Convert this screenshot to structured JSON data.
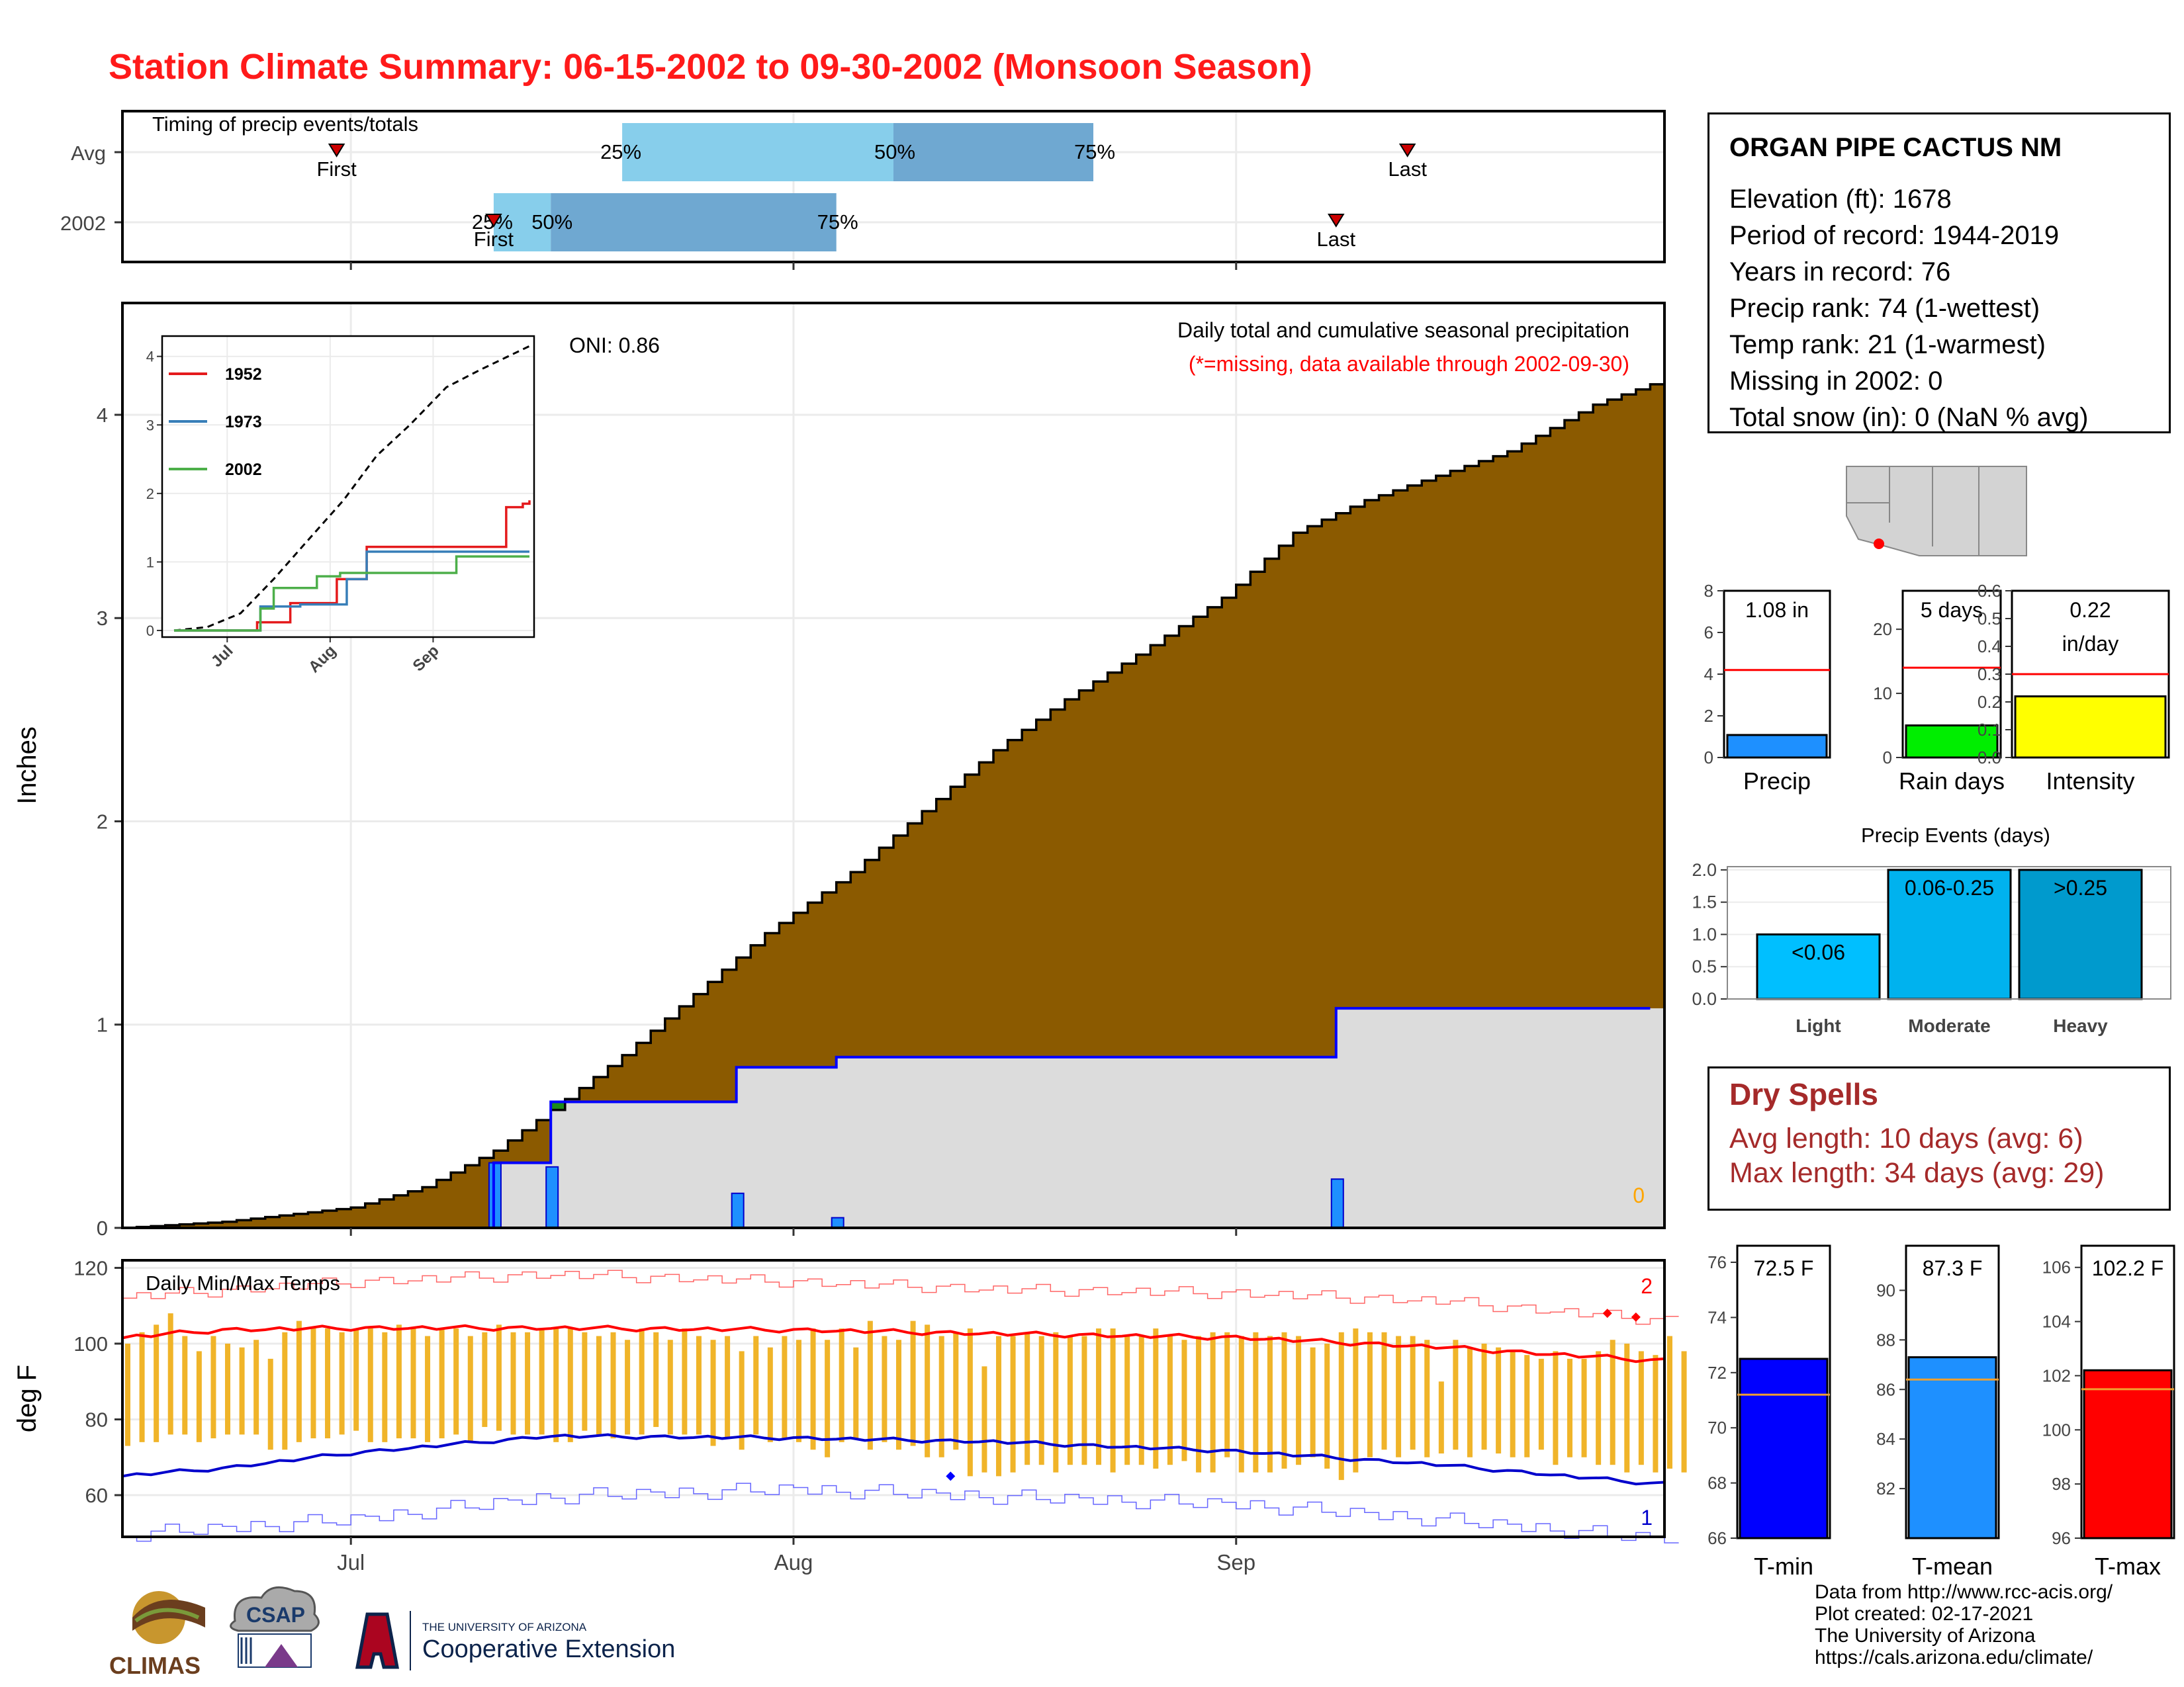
{
  "title": "Station Climate Summary: 06-15-2002 to 09-30-2002 (Monsoon Season)",
  "colors": {
    "title": "#ff1a1a",
    "precip_fill": "#8b5a00",
    "current_line": "#0000ff",
    "tmax": "#ff0000",
    "tmin": "#0000cc",
    "dry": "#a52a2a"
  },
  "timing_panel": {
    "title": "Timing of precip events/totals",
    "rows": [
      {
        "label": "Avg",
        "first": "2002-06-30",
        "p25": "2002-07-20",
        "p50": "2002-08-08",
        "p75": "2002-08-22",
        "last": "2002-09-13",
        "first_label": "First",
        "last_label": "Last",
        "p25_label": "25%",
        "p50_label": "50%",
        "p75_label": "75%"
      },
      {
        "label": "2002",
        "first": "2002-07-11",
        "p25": "2002-07-11",
        "p50": "2002-07-15",
        "p75": "2002-08-04",
        "last": "2002-09-08",
        "first_label": "First",
        "last_label": "Last",
        "p25_label": "25%",
        "p50_label": "50%",
        "p75_label": "75%"
      }
    ]
  },
  "precip_panel": {
    "ylabel": "Inches",
    "oni": "ONI: 0.86",
    "subtitle": "Daily total and cumulative seasonal precipitation",
    "note": "(*=missing, data available through 2002-09-30)",
    "missing_count": "0",
    "yticks": [
      "0",
      "1",
      "2",
      "3",
      "4"
    ]
  },
  "inset": {
    "legend": [
      "1952",
      "1973",
      "2002"
    ],
    "legend_colors": [
      "#e41a1c",
      "#377eb8",
      "#4daf4a"
    ],
    "yticks": [
      "0",
      "1",
      "2",
      "3",
      "4"
    ],
    "xticks": [
      "Jul",
      "Aug",
      "Sep"
    ]
  },
  "temp_panel": {
    "title": "Daily Min/Max Temps",
    "ylabel": "deg F",
    "yticks": [
      "60",
      "80",
      "100",
      "120"
    ],
    "count_max": "2",
    "count_min": "1",
    "xticks": [
      "Jul",
      "Aug",
      "Sep"
    ]
  },
  "station": {
    "name": "ORGAN PIPE CACTUS NM",
    "lines": [
      "Elevation (ft): 1678",
      "Period of record: 1944-2019",
      "Years in record: 76",
      "Precip rank: 74 (1-wettest)",
      "Temp rank: 21 (1-warmest)",
      "Missing in 2002: 0",
      "Total snow (in): 0 (NaN % avg)"
    ]
  },
  "mini_bars": [
    {
      "label": "Precip",
      "value_label": "1.08 in",
      "value": 1.08,
      "avg": 4.2,
      "ymax": 8,
      "yticks": [
        "0",
        "2",
        "4",
        "6",
        "8"
      ],
      "color": "#1e90ff"
    },
    {
      "label": "Rain days",
      "value_label": "5 days",
      "value": 5,
      "avg": 14,
      "ymax": 26,
      "yticks": [
        "0",
        "10",
        "20"
      ],
      "color": "#00ee00"
    },
    {
      "label": "Intensity",
      "value_label": "0.22",
      "value_label2": "in/day",
      "value": 0.22,
      "avg": 0.3,
      "ymax": 0.6,
      "yticks": [
        "0.0",
        "0.1",
        "0.2",
        "0.3",
        "0.4",
        "0.5",
        "0.6"
      ],
      "color": "#ffff00"
    }
  ],
  "precip_events": {
    "title": "Precip Events (days)",
    "yticks": [
      "0.0",
      "0.5",
      "1.0",
      "1.5",
      "2.0"
    ],
    "bars": [
      {
        "category": "Light",
        "value": 1,
        "label": "<0.06",
        "color": "#00bfff"
      },
      {
        "category": "Moderate",
        "value": 2,
        "label": "0.06-0.25",
        "color": "#00b2ee"
      },
      {
        "category": "Heavy",
        "value": 2,
        "label": ">0.25",
        "color": "#009acd"
      }
    ]
  },
  "dry_spells": {
    "title": "Dry Spells",
    "avg_length": "Avg length: 10 days (avg: 6)",
    "max_length": "Max length: 34 days (avg: 29)"
  },
  "temp_bars": [
    {
      "label": "T-min",
      "value_label": "72.5 F",
      "value": 72.5,
      "avg": 71.2,
      "ymin": 66,
      "ymax": 76.6,
      "yticks": [
        "66",
        "68",
        "70",
        "72",
        "74",
        "76"
      ],
      "color": "#0000ff"
    },
    {
      "label": "T-mean",
      "value_label": "87.3 F",
      "value": 87.3,
      "avg": 86.4,
      "ymin": 80,
      "ymax": 91.8,
      "yticks": [
        "82",
        "84",
        "86",
        "88",
        "90"
      ],
      "color": "#1e90ff"
    },
    {
      "label": "T-max",
      "value_label": "102.2 F",
      "value": 102.2,
      "avg": 101.5,
      "ymin": 96,
      "ymax": 106.8,
      "yticks": [
        "96",
        "98",
        "100",
        "102",
        "104",
        "106"
      ],
      "color": "#ff0000"
    }
  ],
  "credits": [
    "Data from http://www.rcc-acis.org/",
    "Plot created: 02-17-2021",
    "The University of Arizona",
    "https://cals.arizona.edu/climate/"
  ],
  "logos": {
    "climas": "CLIMAS",
    "csap": "CSAP",
    "ua_small": "THE UNIVERSITY OF ARIZONA",
    "ua_ext": "Cooperative Extension"
  },
  "chart_data": [
    {
      "type": "area",
      "title": "Daily total and cumulative seasonal precipitation",
      "ylabel": "Inches",
      "ylim": [
        0,
        4.5
      ],
      "xlim": [
        "2002-06-15",
        "2002-09-30"
      ],
      "series": [
        {
          "name": "Avg cumulative",
          "x": [
            "2002-06-15",
            "2002-06-22",
            "2002-07-01",
            "2002-07-06",
            "2002-07-11",
            "2002-07-15",
            "2002-07-20",
            "2002-07-25",
            "2002-07-30",
            "2002-08-05",
            "2002-08-10",
            "2002-08-15",
            "2002-08-20",
            "2002-08-25",
            "2002-08-31",
            "2002-09-05",
            "2002-09-10",
            "2002-09-15",
            "2002-09-20",
            "2002-09-26",
            "2002-09-30"
          ],
          "values": [
            0.0,
            0.03,
            0.1,
            0.2,
            0.38,
            0.58,
            0.85,
            1.15,
            1.45,
            1.75,
            2.05,
            2.35,
            2.6,
            2.82,
            3.1,
            3.42,
            3.58,
            3.7,
            3.82,
            4.05,
            4.15
          ]
        },
        {
          "name": "2002 cumulative",
          "x": [
            "2002-06-15",
            "2002-07-10",
            "2002-07-11",
            "2002-07-14",
            "2002-07-15",
            "2002-07-27",
            "2002-07-28",
            "2002-08-03",
            "2002-08-04",
            "2002-09-07",
            "2002-09-08",
            "2002-09-30"
          ],
          "values": [
            0.0,
            0.0,
            0.32,
            0.32,
            0.62,
            0.62,
            0.79,
            0.79,
            0.84,
            0.84,
            1.08,
            1.08
          ]
        },
        {
          "name": "2002 daily",
          "x": [
            "2002-07-11",
            "2002-07-15",
            "2002-07-28",
            "2002-08-04",
            "2002-09-08"
          ],
          "values": [
            0.32,
            0.3,
            0.17,
            0.05,
            0.24
          ]
        }
      ]
    },
    {
      "type": "line",
      "title": "inset cumulative analog years",
      "ylim": [
        0,
        4.2
      ],
      "series": [
        {
          "name": "Avg",
          "x": [
            "2002-06-15",
            "2002-06-25",
            "2002-07-05",
            "2002-07-15",
            "2002-07-25",
            "2002-08-05",
            "2002-08-15",
            "2002-08-25",
            "2002-09-05",
            "2002-09-15",
            "2002-09-30"
          ],
          "values": [
            0.0,
            0.05,
            0.25,
            0.75,
            1.3,
            1.9,
            2.55,
            3.0,
            3.55,
            3.8,
            4.15
          ]
        },
        {
          "name": "1952",
          "x": [
            "2002-06-15",
            "2002-07-08",
            "2002-07-10",
            "2002-07-18",
            "2002-07-20",
            "2002-08-01",
            "2002-08-03",
            "2002-08-10",
            "2002-08-12",
            "2002-09-20",
            "2002-09-23",
            "2002-09-26",
            "2002-09-28",
            "2002-09-30"
          ],
          "values": [
            0.0,
            0.0,
            0.12,
            0.12,
            0.4,
            0.4,
            0.75,
            0.75,
            1.22,
            1.22,
            1.8,
            1.8,
            1.85,
            1.9
          ]
        },
        {
          "name": "1973",
          "x": [
            "2002-06-15",
            "2002-07-09",
            "2002-07-11",
            "2002-07-21",
            "2002-07-23",
            "2002-08-04",
            "2002-08-06",
            "2002-08-10",
            "2002-08-12",
            "2002-09-30"
          ],
          "values": [
            0.0,
            0.0,
            0.35,
            0.35,
            0.38,
            0.38,
            0.75,
            0.75,
            1.15,
            1.15
          ]
        },
        {
          "name": "2002",
          "x": [
            "2002-06-15",
            "2002-07-10",
            "2002-07-11",
            "2002-07-14",
            "2002-07-15",
            "2002-07-27",
            "2002-07-28",
            "2002-08-03",
            "2002-08-04",
            "2002-09-07",
            "2002-09-08",
            "2002-09-30"
          ],
          "values": [
            0.0,
            0.0,
            0.32,
            0.32,
            0.62,
            0.62,
            0.79,
            0.79,
            0.84,
            0.84,
            1.08,
            1.08
          ]
        }
      ]
    },
    {
      "type": "line",
      "title": "Daily Min/Max Temps",
      "ylabel": "deg F",
      "ylim": [
        49,
        122
      ],
      "xlim": [
        "2002-06-15",
        "2002-09-30"
      ],
      "daily_max": [
        100,
        103,
        105,
        108,
        102,
        98,
        102,
        100,
        99,
        101,
        96,
        103,
        106,
        104,
        104,
        103,
        104,
        104,
        103,
        105,
        104,
        102,
        104,
        104,
        102,
        103,
        105,
        103,
        103,
        104,
        104,
        104,
        103,
        102,
        103,
        101,
        104,
        103,
        101,
        104,
        102,
        101,
        102,
        98,
        102,
        99,
        102,
        101,
        104,
        101,
        104,
        99,
        106,
        102,
        101,
        106,
        105,
        102,
        103,
        104,
        94,
        102,
        102,
        103,
        102,
        103,
        102,
        102,
        104,
        104,
        102,
        102,
        104,
        102,
        101,
        102,
        103,
        103,
        102,
        103,
        102,
        103,
        102,
        99,
        100,
        103,
        104,
        103,
        103,
        102,
        102,
        101,
        90,
        101,
        99,
        100,
        99,
        98,
        97,
        96,
        98,
        96,
        96,
        98,
        101,
        100,
        98,
        97,
        102,
        98
      ],
      "daily_min": [
        73,
        74,
        74,
        76,
        76,
        74,
        75,
        76,
        76,
        76,
        72,
        72,
        74,
        75,
        75,
        76,
        77,
        74,
        74,
        75,
        75,
        74,
        75,
        76,
        74,
        78,
        77,
        76,
        76,
        76,
        74,
        74,
        77,
        76,
        75,
        76,
        76,
        78,
        76,
        76,
        76,
        73,
        75,
        72,
        76,
        74,
        75,
        74,
        72,
        70,
        74,
        75,
        72,
        74,
        72,
        73,
        70,
        70,
        72,
        65,
        66,
        65,
        66,
        68,
        68,
        66,
        68,
        68,
        68,
        66,
        68,
        68,
        67,
        68,
        69,
        66,
        66,
        70,
        66,
        66,
        66,
        67,
        68,
        70,
        67,
        64,
        66,
        70,
        72,
        70,
        72,
        70,
        71,
        72,
        70,
        72,
        71,
        70,
        70,
        72,
        68,
        70,
        70,
        68,
        68,
        66,
        68,
        66,
        67,
        66
      ],
      "series": [
        {
          "name": "Avg max",
          "x": [
            "2002-06-15",
            "2002-06-22",
            "2002-07-01",
            "2002-07-15",
            "2002-08-01",
            "2002-08-15",
            "2002-09-01",
            "2002-09-15",
            "2002-09-30"
          ],
          "values": [
            101.5,
            103.5,
            104.0,
            104.0,
            103.5,
            102.5,
            101.5,
            99.0,
            95.5
          ]
        },
        {
          "name": "Avg min",
          "x": [
            "2002-06-15",
            "2002-06-22",
            "2002-07-01",
            "2002-07-15",
            "2002-08-01",
            "2002-08-15",
            "2002-09-01",
            "2002-09-15",
            "2002-09-30"
          ],
          "values": [
            65.0,
            67.0,
            71.0,
            75.5,
            75.0,
            74.0,
            71.5,
            68.0,
            63.0
          ]
        },
        {
          "name": "Record max",
          "x": [
            "2002-06-15",
            "2002-07-01",
            "2002-07-15",
            "2002-08-01",
            "2002-08-15",
            "2002-09-01",
            "2002-09-15",
            "2002-09-30"
          ],
          "values": [
            112,
            116,
            118,
            116,
            114,
            113,
            111,
            106
          ]
        },
        {
          "name": "Record min",
          "x": [
            "2002-06-15",
            "2002-07-01",
            "2002-07-15",
            "2002-08-01",
            "2002-08-15",
            "2002-09-01",
            "2002-09-15",
            "2002-09-30"
          ],
          "values": [
            50,
            54,
            60,
            62,
            60,
            58,
            54,
            49
          ]
        }
      ]
    },
    {
      "type": "bar",
      "title": "Precip Events (days)",
      "categories": [
        "Light",
        "Moderate",
        "Heavy"
      ],
      "values": [
        1,
        2,
        2
      ],
      "ylim": [
        0,
        2
      ]
    }
  ]
}
